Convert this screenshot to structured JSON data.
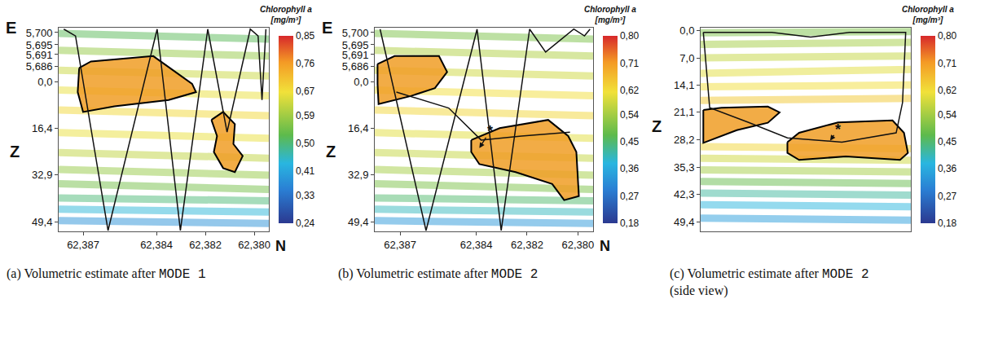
{
  "chart_data": [
    {
      "type": "isosurface_view",
      "caption": "(a) Volumetric estimate after MODE 1",
      "x_label": "N",
      "y_label": "Z",
      "y2_label": "E",
      "xlim": [
        62.388,
        62.3794
      ],
      "xticks": [
        {
          "value": 62.387,
          "label": "62,387"
        },
        {
          "value": 62.384,
          "label": "62,384"
        },
        {
          "value": 62.382,
          "label": "62,382"
        },
        {
          "value": 62.38,
          "label": "62,380"
        }
      ],
      "ylim": [
        52.8,
        -19.0
      ],
      "yticks": [
        {
          "value": 0,
          "label": "0,0"
        },
        {
          "value": 16.4,
          "label": "16,4"
        },
        {
          "value": 32.9,
          "label": "32,9"
        },
        {
          "value": 49.4,
          "label": "49,4"
        }
      ],
      "y2lim": [
        5.6833,
        5.702
      ],
      "y2ticks": [
        {
          "value": 5.7,
          "label": "5,700"
        },
        {
          "value": 5.695,
          "label": "5,695"
        },
        {
          "value": 5.691,
          "label": "5,691"
        },
        {
          "value": 5.686,
          "label": "5,686"
        }
      ],
      "colorbar": {
        "title": "Chlorophyll a",
        "unit": "[mg/m³]",
        "range": [
          0.24,
          0.85
        ],
        "ticks": [
          {
            "value": 0.24,
            "label": "0,24"
          },
          {
            "value": 0.33,
            "label": "0,33"
          },
          {
            "value": 0.41,
            "label": "0,41"
          },
          {
            "value": 0.5,
            "label": "0,50"
          },
          {
            "value": 0.59,
            "label": "0,59"
          },
          {
            "value": 0.67,
            "label": "0,67"
          },
          {
            "value": 0.76,
            "label": "0,76"
          },
          {
            "value": 0.85,
            "label": "0,85"
          }
        ]
      },
      "layers": [
        {
          "chl": 0.52,
          "z": [
            -17,
            -15
          ]
        },
        {
          "chl": 0.58,
          "z": [
            -11,
            -9
          ]
        },
        {
          "chl": 0.63,
          "z": [
            -4,
            -2
          ]
        },
        {
          "chl": 0.66,
          "z": [
            3,
            5
          ]
        },
        {
          "chl": 0.68,
          "z": [
            10,
            12
          ]
        },
        {
          "chl": 0.66,
          "z": [
            18,
            20
          ]
        },
        {
          "chl": 0.62,
          "z": [
            25,
            27
          ]
        },
        {
          "chl": 0.58,
          "z": [
            31,
            33
          ]
        },
        {
          "chl": 0.55,
          "z": [
            36,
            38
          ]
        },
        {
          "chl": 0.5,
          "z": [
            41,
            42
          ]
        },
        {
          "chl": 0.44,
          "z": [
            45,
            46
          ]
        },
        {
          "chl": 0.38,
          "z": [
            49,
            50
          ]
        }
      ],
      "regions": [
        {
          "n": [
            62.38716,
            62.38668,
            62.38413,
            62.38254,
            62.38238,
            62.3835,
            62.38572,
            62.387,
            62.38722
          ],
          "z": [
            -4.8,
            -7.1,
            -9.0,
            0.8,
            3.7,
            6.5,
            8.7,
            10.7,
            3.7
          ]
        },
        {
          "n": [
            62.38175,
            62.38127,
            62.38079,
            62.38085,
            62.38047,
            62.38079,
            62.38127,
            62.38165,
            62.38152
          ],
          "z": [
            13.5,
            10.7,
            15.0,
            22.0,
            26.2,
            31.9,
            30.5,
            24.8,
            19.2
          ]
        }
      ],
      "trajectory": {
        "n": [
          62.38779,
          62.38731,
          62.38598,
          62.38397,
          62.38302,
          62.3819,
          62.38111,
          62.38016,
          62.37984,
          62.37968,
          62.37952
        ],
        "z": [
          -18.5,
          -16.1,
          52.5,
          -18.5,
          52.5,
          -18.5,
          17.8,
          -18.5,
          -16.1,
          6.5,
          -18.5
        ]
      },
      "annotations": []
    },
    {
      "type": "isosurface_view",
      "caption": "(b) Volumetric estimate after MODE 2",
      "x_label": "N",
      "y_label": "Z",
      "y2_label": "E",
      "xlim": [
        62.388,
        62.3794
      ],
      "xticks": [
        {
          "value": 62.387,
          "label": "62,387"
        },
        {
          "value": 62.384,
          "label": "62,384"
        },
        {
          "value": 62.382,
          "label": "62,382"
        },
        {
          "value": 62.38,
          "label": "62,380"
        }
      ],
      "ylim": [
        52.8,
        -19.0
      ],
      "yticks": [
        {
          "value": 0,
          "label": "0,0"
        },
        {
          "value": 16.4,
          "label": "16,4"
        },
        {
          "value": 32.9,
          "label": "32,9"
        },
        {
          "value": 49.4,
          "label": "49,4"
        }
      ],
      "y2lim": [
        5.6833,
        5.702
      ],
      "y2ticks": [
        {
          "value": 5.7,
          "label": "5,700"
        },
        {
          "value": 5.695,
          "label": "5,695"
        },
        {
          "value": 5.691,
          "label": "5,691"
        },
        {
          "value": 5.686,
          "label": "5,686"
        }
      ],
      "colorbar": {
        "title": "Chlorophyll a",
        "unit": "[mg/m³]",
        "range": [
          0.18,
          0.8
        ],
        "ticks": [
          {
            "value": 0.18,
            "label": "0,18"
          },
          {
            "value": 0.27,
            "label": "0,27"
          },
          {
            "value": 0.36,
            "label": "0,36"
          },
          {
            "value": 0.45,
            "label": "0,45"
          },
          {
            "value": 0.54,
            "label": "0,54"
          },
          {
            "value": 0.62,
            "label": "0,62"
          },
          {
            "value": 0.71,
            "label": "0,71"
          },
          {
            "value": 0.8,
            "label": "0,80"
          }
        ]
      },
      "layers": [
        {
          "chl": 0.5,
          "z": [
            -17,
            -15
          ]
        },
        {
          "chl": 0.55,
          "z": [
            -11,
            -9
          ]
        },
        {
          "chl": 0.58,
          "z": [
            -4,
            -2
          ]
        },
        {
          "chl": 0.62,
          "z": [
            3,
            5
          ]
        },
        {
          "chl": 0.63,
          "z": [
            10,
            12
          ]
        },
        {
          "chl": 0.6,
          "z": [
            18,
            20
          ]
        },
        {
          "chl": 0.57,
          "z": [
            25,
            27
          ]
        },
        {
          "chl": 0.54,
          "z": [
            31,
            33
          ]
        },
        {
          "chl": 0.5,
          "z": [
            36,
            38
          ]
        },
        {
          "chl": 0.45,
          "z": [
            41,
            42
          ]
        },
        {
          "chl": 0.4,
          "z": [
            45,
            46
          ]
        },
        {
          "chl": 0.33,
          "z": [
            49,
            50
          ]
        }
      ],
      "regions": [
        {
          "n": [
            62.38789,
            62.38722,
            62.38547,
            62.38515,
            62.38563,
            62.38658,
            62.38785,
            62.38789
          ],
          "z": [
            -6.2,
            -9.0,
            -9.0,
            -3.4,
            2.3,
            5.1,
            7.9,
            0.8
          ]
        },
        {
          "n": [
            62.3842,
            62.38308,
            62.38117,
            62.38038,
            62.38006,
            62.37996,
            62.38054,
            62.38101,
            62.38245,
            62.38388,
            62.3842
          ],
          "z": [
            20.6,
            16.4,
            13.5,
            19.2,
            24.8,
            40.4,
            41.8,
            36.1,
            31.9,
            29.1,
            24.8
          ]
        }
      ],
      "trajectory": {
        "n": [
          62.38779,
          62.38598,
          62.38397,
          62.38302,
          62.3819,
          62.38127,
          62.38016,
          62.37974,
          62.37952,
          null,
          62.38715,
          62.38509,
          62.38381,
          62.38222,
          62.38031
        ],
        "z": [
          -18.5,
          52.5,
          -18.5,
          52.5,
          -18.5,
          -10.4,
          -18.5,
          -16.1,
          -18.5,
          null,
          3.7,
          9.3,
          20.6,
          19.2,
          17.8
        ]
      },
      "annotations": [
        {
          "text": "*",
          "n": 62.38346,
          "z": 17.5,
          "arrow_n": 62.38388,
          "arrow_z": 23.4
        }
      ]
    },
    {
      "type": "isosurface_view",
      "caption": "(c) Volumetric estimate after MODE 2 (side view)",
      "y_label": "Z",
      "tick_labels": "y",
      "xlim": [
        62.388,
        62.3794
      ],
      "ylim": [
        51.9,
        -0.8
      ],
      "yticks": [
        {
          "value": 0,
          "label": "0,0"
        },
        {
          "value": 7,
          "label": "7,0"
        },
        {
          "value": 14.1,
          "label": "14,1"
        },
        {
          "value": 21.1,
          "label": "21,1"
        },
        {
          "value": 28.2,
          "label": "28,2"
        },
        {
          "value": 35.3,
          "label": "35,3"
        },
        {
          "value": 42.3,
          "label": "42,3"
        },
        {
          "value": 49.4,
          "label": "49,4"
        }
      ],
      "colorbar": {
        "title": "Chlorophyll a",
        "unit": "[mg/m³]",
        "range": [
          0.18,
          0.8
        ],
        "ticks": [
          {
            "value": 0.18,
            "label": "0,18"
          },
          {
            "value": 0.27,
            "label": "0,27"
          },
          {
            "value": 0.36,
            "label": "0,36"
          },
          {
            "value": 0.45,
            "label": "0,45"
          },
          {
            "value": 0.54,
            "label": "0,54"
          },
          {
            "value": 0.62,
            "label": "0,62"
          },
          {
            "value": 0.71,
            "label": "0,71"
          },
          {
            "value": 0.8,
            "label": "0,80"
          }
        ]
      },
      "layers": [
        {
          "chl": 0.5,
          "z": [
            0.5,
            0.2
          ]
        },
        {
          "chl": 0.54,
          "z": [
            3.5,
            3
          ]
        },
        {
          "chl": 0.57,
          "z": [
            7,
            6.5
          ]
        },
        {
          "chl": 0.6,
          "z": [
            11,
            10
          ]
        },
        {
          "chl": 0.62,
          "z": [
            14.5,
            14
          ]
        },
        {
          "chl": 0.65,
          "z": [
            18,
            17.5
          ]
        },
        {
          "chl": 0.63,
          "z": [
            30,
            30.5
          ]
        },
        {
          "chl": 0.58,
          "z": [
            33,
            33.5
          ]
        },
        {
          "chl": 0.54,
          "z": [
            36,
            36.5
          ]
        },
        {
          "chl": 0.48,
          "z": [
            39,
            39.5
          ]
        },
        {
          "chl": 0.42,
          "z": [
            42,
            42.5
          ]
        },
        {
          "chl": 0.38,
          "z": [
            45,
            45.5
          ]
        },
        {
          "chl": 0.34,
          "z": [
            48.5,
            49
          ]
        }
      ],
      "regions": [
        {
          "n": [
            62.38789,
            62.38715,
            62.38525,
            62.38477,
            62.38525,
            62.38652,
            62.38789
          ],
          "z": [
            20.5,
            19.9,
            19.6,
            21.1,
            23.8,
            25.7,
            29.0
          ]
        },
        {
          "n": [
            62.38445,
            62.38397,
            62.38238,
            62.38015,
            62.37968,
            62.37952,
            62.37984,
            62.38206,
            62.38397,
            62.38445
          ],
          "z": [
            28.8,
            26.4,
            23.7,
            23.2,
            26.4,
            31.6,
            33.4,
            32.5,
            33.4,
            31.6
          ]
        }
      ],
      "trajectory": {
        "n": [
          62.38789,
          62.38763,
          62.38604,
          62.38445,
          62.38222,
          62.38,
          62.37974,
          62.37961,
          62.38191,
          62.3835,
          62.38509,
          62.38789
        ],
        "z": [
          0.4,
          19.9,
          23.7,
          27.7,
          28.8,
          26.4,
          18.6,
          0.4,
          0.4,
          1.6,
          0.4,
          0.4
        ]
      },
      "annotations": [
        {
          "text": "*",
          "n": 62.38238,
          "z": 25.5,
          "arrow_n": 62.3827,
          "arrow_z": 28.4
        }
      ]
    }
  ]
}
